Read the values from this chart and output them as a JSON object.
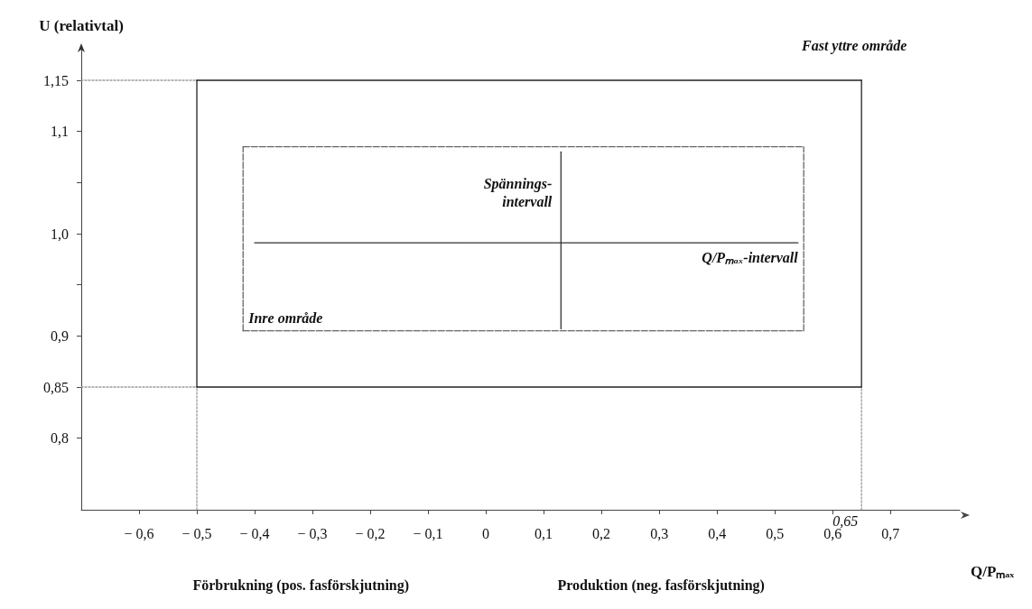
{
  "chart_data": {
    "type": "line",
    "xlabel": "Q/Pₘₐₓ",
    "ylabel": "U (relativtal)",
    "xlim": [
      -0.7,
      0.82
    ],
    "ylim": [
      0.73,
      1.18
    ],
    "xticks": [
      {
        "value": -0.6,
        "label": "− 0,6"
      },
      {
        "value": -0.5,
        "label": "− 0,5"
      },
      {
        "value": -0.4,
        "label": "− 0,4"
      },
      {
        "value": -0.3,
        "label": "− 0,3"
      },
      {
        "value": -0.2,
        "label": "− 0,2"
      },
      {
        "value": -0.1,
        "label": "− 0,1"
      },
      0,
      {
        "value": 0.1,
        "label": "0,1"
      },
      {
        "value": 0.2,
        "label": "0,2"
      },
      {
        "value": 0.3,
        "label": "0,3"
      },
      {
        "value": 0.4,
        "label": "0,4"
      },
      {
        "value": 0.5,
        "label": "0,5"
      },
      {
        "value": 0.6,
        "label": "0,6"
      },
      {
        "value": 0.7,
        "label": "0,7"
      }
    ],
    "yticks": [
      {
        "value": 0.8,
        "label": "0,8"
      },
      {
        "value": 0.85,
        "label": "0,85"
      },
      {
        "value": 0.9,
        "label": "0,9"
      },
      {
        "value": 0.95,
        "label": null
      },
      {
        "value": 1.0,
        "label": "1,0"
      },
      {
        "value": 1.05,
        "label": null
      },
      {
        "value": 1.1,
        "label": "1,1"
      },
      {
        "value": 1.15,
        "label": "1,15"
      }
    ],
    "series": [
      {
        "color": "#222222",
        "line_style": "solid",
        "x": [
          -0.5,
          0.65
        ],
        "values": [
          0.85,
          0.85
        ]
      },
      {
        "color": "#222222",
        "line_style": "solid",
        "x": [
          0.65,
          0.65
        ],
        "values": [
          0.85,
          1.15
        ]
      },
      {
        "color": "#222222",
        "line_style": "solid",
        "x": [
          -0.5,
          0.65
        ],
        "values": [
          1.15,
          1.15
        ]
      },
      {
        "color": "#222222",
        "line_style": "solid",
        "x": [
          -0.5,
          -0.5
        ],
        "values": [
          0.85,
          1.15
        ]
      },
      {
        "color": "#666666",
        "line_style": "dashed",
        "x": [
          -0.42,
          0.55
        ],
        "values": [
          0.905,
          0.905
        ]
      },
      {
        "color": "#666666",
        "line_style": "dashed",
        "x": [
          0.55,
          0.55
        ],
        "values": [
          0.905,
          1.085
        ]
      },
      {
        "color": "#666666",
        "line_style": "dashed",
        "x": [
          -0.42,
          0.55
        ],
        "values": [
          1.085,
          1.085
        ]
      },
      {
        "color": "#666666",
        "line_style": "dashed",
        "x": [
          -0.42,
          -0.42
        ],
        "values": [
          0.905,
          1.085
        ]
      },
      {
        "color": "#333333",
        "line_style": "solid",
        "x": [
          0.13,
          0.13
        ],
        "values": [
          0.907,
          1.08
        ]
      },
      {
        "color": "#333333",
        "line_style": "solid",
        "x": [
          -0.4,
          0.54
        ],
        "values": [
          0.991,
          0.991
        ]
      },
      {
        "color": "#9a9a9a",
        "line_style": "dotted",
        "x": [
          -0.7,
          -0.5
        ],
        "values": [
          1.15,
          1.15
        ]
      },
      {
        "color": "#9a9a9a",
        "line_style": "dotted",
        "x": [
          -0.7,
          -0.5
        ],
        "values": [
          0.85,
          0.85
        ]
      },
      {
        "color": "#9a9a9a",
        "line_style": "dotted",
        "x": [
          -0.5,
          -0.5
        ],
        "values": [
          0.73,
          0.85
        ]
      },
      {
        "color": "#9a9a9a",
        "line_style": "dotted",
        "x": [
          0.65,
          0.65
        ],
        "values": [
          0.73,
          0.85
        ]
      }
    ],
    "annotations": [
      "Fast yttre område",
      {
        "text": "Spännings-\nintervall",
        "x": 0.13,
        "y": 1.04
      },
      {
        "text": "Q/Pₘₐₓ-intervall",
        "x": 0.54,
        "y": 0.991
      },
      {
        "text": "Inre område",
        "x": -0.42,
        "y": 0.905
      },
      {
        "text": "0,65",
        "x": 0.65,
        "y": 0.73
      },
      "Förbrukning (pos. fasförskjutning)",
      "Produktion (neg. fasförskjutning)"
    ],
    "grid": false
  }
}
